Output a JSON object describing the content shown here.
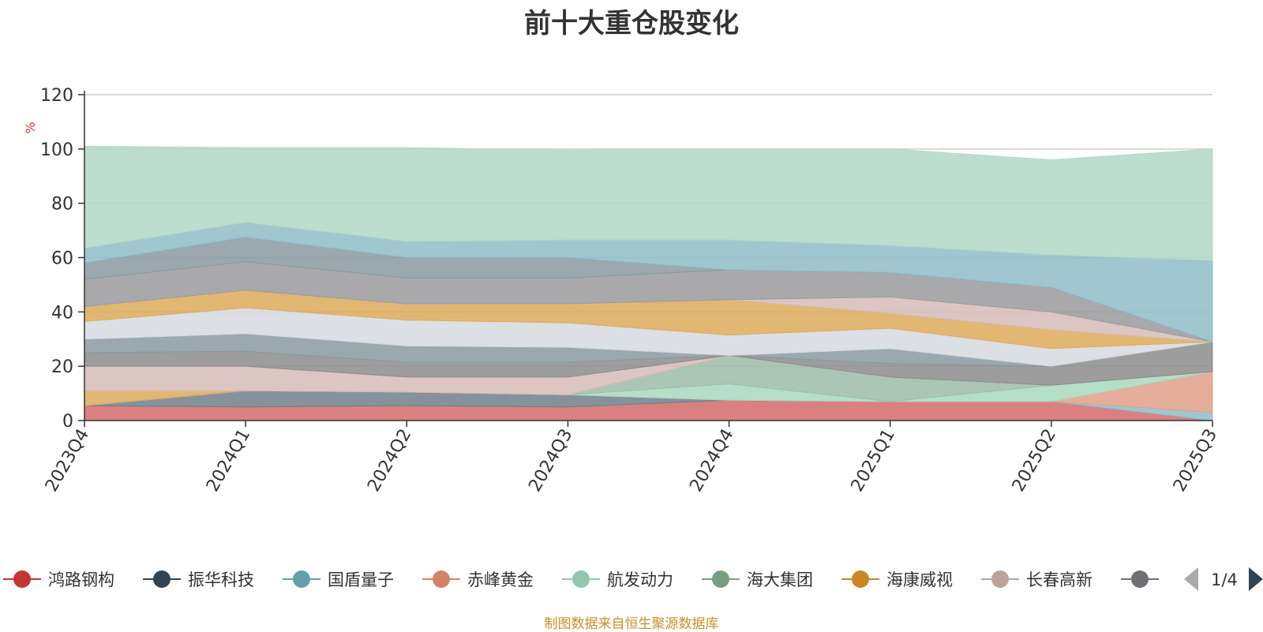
{
  "chart_data": {
    "type": "area",
    "title": "前十大重仓股变化",
    "ylabel": "%",
    "ylim": [
      0,
      120
    ],
    "yticks": [
      0,
      20,
      40,
      60,
      80,
      100,
      120
    ],
    "grid": true,
    "categories": [
      "2023Q4",
      "2024Q1",
      "2024Q2",
      "2024Q3",
      "2024Q4",
      "2025Q1",
      "2025Q2",
      "2025Q3"
    ],
    "series": [
      {
        "name": "鸿路钢构",
        "color": "#d46a6a",
        "values": [
          5.5,
          5,
          5.5,
          5,
          7.5,
          7,
          7,
          0
        ]
      },
      {
        "name": "振华科技",
        "color": "#6e7f8c",
        "values": [
          0,
          6,
          5,
          4.5,
          0,
          0,
          0,
          0
        ]
      },
      {
        "name": "国盾量子",
        "color": "#8fbcc8",
        "values": [
          0,
          0,
          0,
          0,
          0,
          0,
          0,
          3
        ]
      },
      {
        "name": "赤峰黄金",
        "color": "#e0a088",
        "values": [
          0,
          0,
          0,
          0,
          0,
          0,
          0,
          15
        ]
      },
      {
        "name": "航发动力",
        "color": "#a8d8c0",
        "values": [
          0,
          0,
          0,
          0,
          6,
          0,
          6,
          0
        ]
      },
      {
        "name": "海大集团",
        "color": "#9cbcaa",
        "values": [
          0,
          0,
          0,
          0,
          10.5,
          9,
          0,
          0
        ]
      },
      {
        "name": "海康威视",
        "color": "#dcaa5a",
        "values": [
          5.5,
          0,
          0,
          0,
          0,
          0,
          0,
          0
        ]
      },
      {
        "name": "长春高新",
        "color": "#d6bcb8",
        "values": [
          9,
          9,
          5.5,
          6.5,
          0,
          0,
          0,
          0
        ]
      },
      {
        "name": "",
        "color": "#8c8c8c",
        "values": [
          5,
          5.5,
          5.5,
          5.5,
          0,
          5,
          7,
          11
        ]
      },
      {
        "name": "",
        "color": "#8a9aa0",
        "values": [
          5,
          6.5,
          6,
          5.5,
          0,
          5.5,
          0,
          0
        ]
      },
      {
        "name": "",
        "color": "#d6dae0",
        "values": [
          6.5,
          9.5,
          9.5,
          9,
          7.5,
          7.5,
          6.5,
          0
        ]
      },
      {
        "name": "",
        "color": "#dcaa5a",
        "values": [
          5.5,
          6.5,
          6,
          7,
          13,
          5.5,
          7,
          0
        ]
      },
      {
        "name": "",
        "color": "#d6bcb8",
        "values": [
          0,
          0,
          0,
          0,
          0,
          6,
          6.5,
          0
        ]
      },
      {
        "name": "",
        "color": "#9a9a9e",
        "values": [
          10,
          10.5,
          9.5,
          9.5,
          11,
          9,
          9,
          0
        ]
      },
      {
        "name": "",
        "color": "#8a9aa0",
        "values": [
          6,
          9,
          7.5,
          7.5,
          0,
          0,
          0,
          0
        ]
      },
      {
        "name": "",
        "color": "#6e7f8c",
        "values": [
          0,
          0,
          0,
          0,
          0,
          0,
          0,
          0
        ]
      },
      {
        "name": "",
        "color": "#8fbcc8",
        "values": [
          5.5,
          5.5,
          6,
          6.5,
          11,
          10,
          12,
          30
        ]
      },
      {
        "name": "",
        "color": "#b2d8c6",
        "values": [
          37.5,
          27.5,
          34.5,
          33,
          33.5,
          35.5,
          35,
          41
        ]
      }
    ],
    "legend": {
      "position": "bottom",
      "page": "1/4",
      "items": [
        {
          "name": "鸿路钢构",
          "color": "#c23531"
        },
        {
          "name": "振华科技",
          "color": "#2f4554"
        },
        {
          "name": "国盾量子",
          "color": "#61a0a8"
        },
        {
          "name": "赤峰黄金",
          "color": "#d48265"
        },
        {
          "name": "航发动力",
          "color": "#91c7ae"
        },
        {
          "name": "海大集团",
          "color": "#749f83"
        },
        {
          "name": "海康威视",
          "color": "#ca8622"
        },
        {
          "name": "长春高新",
          "color": "#bda29a"
        },
        {
          "name": "",
          "color": "#6e7074"
        }
      ]
    },
    "source_note": "制图数据来自恒生聚源数据库"
  }
}
